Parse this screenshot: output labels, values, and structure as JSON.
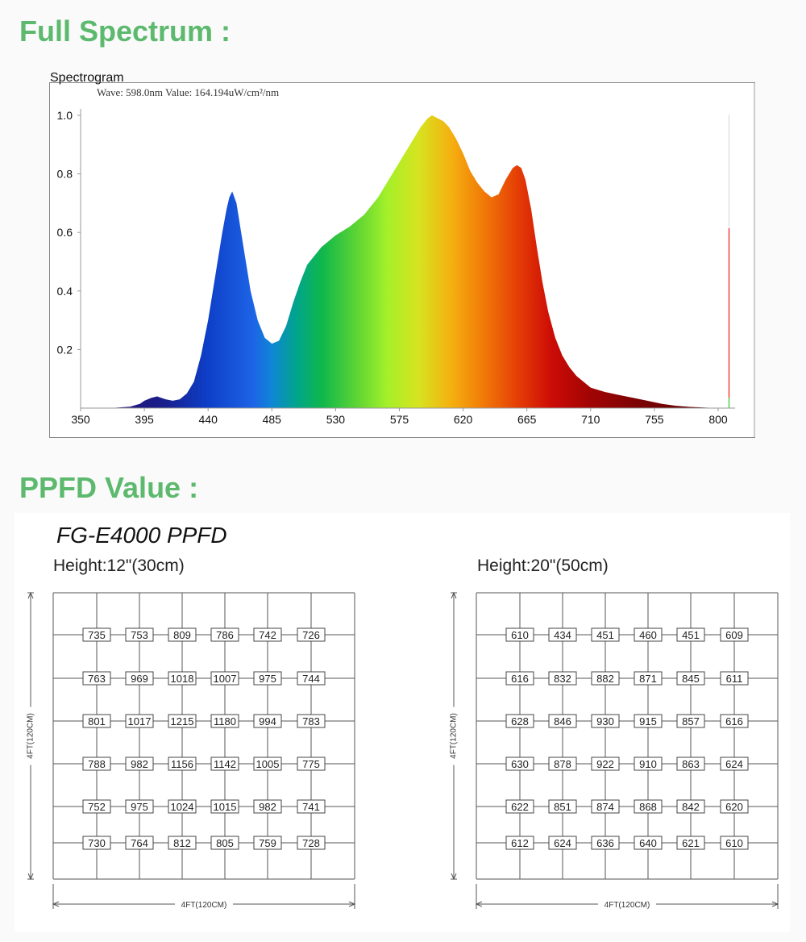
{
  "sections": {
    "spectrum_title": "Full Spectrum :",
    "ppfd_title": "PPFD Value :"
  },
  "spectrogram": {
    "title": "Spectrogram",
    "readout": "Wave: 598.0nm Value: 164.194uW/cm²/nm"
  },
  "ppfd": {
    "model_title": "FG-E4000 PPFD",
    "grids": [
      {
        "caption": "Height:12\"(30cm)",
        "side_label": "4FT(120CM)",
        "bottom_label": "4FT(120CM)",
        "values": [
          [
            735,
            753,
            809,
            786,
            742,
            726
          ],
          [
            763,
            969,
            1018,
            1007,
            975,
            744
          ],
          [
            801,
            1017,
            1215,
            1180,
            994,
            783
          ],
          [
            788,
            982,
            1156,
            1142,
            1005,
            775
          ],
          [
            752,
            975,
            1024,
            1015,
            982,
            741
          ],
          [
            730,
            764,
            812,
            805,
            759,
            728
          ]
        ]
      },
      {
        "caption": "Height:20\"(50cm)",
        "side_label": "4FT(120CM)",
        "bottom_label": "4FT(120CM)",
        "values": [
          [
            610,
            434,
            451,
            460,
            451,
            609
          ],
          [
            616,
            832,
            882,
            871,
            845,
            611
          ],
          [
            628,
            846,
            930,
            915,
            857,
            616
          ],
          [
            630,
            878,
            922,
            910,
            863,
            624
          ],
          [
            622,
            851,
            874,
            868,
            842,
            620
          ],
          [
            612,
            624,
            636,
            640,
            621,
            610
          ]
        ]
      }
    ]
  },
  "chart_data": [
    {
      "type": "area",
      "title": "Spectrogram",
      "xlabel": "",
      "ylabel": "",
      "xlim": [
        350,
        805
      ],
      "ylim": [
        0,
        1.0
      ],
      "x_ticks": [
        350,
        395,
        440,
        485,
        530,
        575,
        620,
        665,
        710,
        755,
        800
      ],
      "y_ticks": [
        0.2,
        0.4,
        0.6,
        0.8,
        1.0
      ],
      "grid": false,
      "x": [
        350,
        370,
        385,
        392,
        395,
        400,
        404,
        410,
        415,
        420,
        425,
        430,
        435,
        440,
        445,
        450,
        453,
        455,
        457,
        460,
        465,
        470,
        475,
        480,
        485,
        490,
        495,
        500,
        505,
        510,
        520,
        530,
        540,
        550,
        560,
        570,
        580,
        590,
        595,
        598,
        602,
        606,
        610,
        615,
        620,
        625,
        630,
        635,
        640,
        645,
        650,
        655,
        658,
        661,
        664,
        668,
        672,
        676,
        680,
        685,
        690,
        695,
        700,
        710,
        720,
        730,
        740,
        750,
        760,
        770,
        780,
        790,
        800
      ],
      "series": [
        {
          "values": [
            0.0,
            0.0,
            0.005,
            0.015,
            0.025,
            0.035,
            0.04,
            0.03,
            0.025,
            0.03,
            0.05,
            0.09,
            0.18,
            0.3,
            0.45,
            0.6,
            0.68,
            0.72,
            0.74,
            0.7,
            0.55,
            0.4,
            0.3,
            0.24,
            0.22,
            0.23,
            0.28,
            0.36,
            0.43,
            0.49,
            0.55,
            0.59,
            0.62,
            0.66,
            0.72,
            0.8,
            0.88,
            0.96,
            0.99,
            1.0,
            0.99,
            0.98,
            0.96,
            0.92,
            0.87,
            0.81,
            0.77,
            0.74,
            0.72,
            0.73,
            0.78,
            0.82,
            0.83,
            0.82,
            0.78,
            0.68,
            0.55,
            0.43,
            0.33,
            0.24,
            0.18,
            0.14,
            0.11,
            0.07,
            0.055,
            0.045,
            0.035,
            0.025,
            0.015,
            0.008,
            0.004,
            0.002,
            0.0
          ]
        }
      ],
      "marker": {
        "wave": 598.0
      }
    },
    {
      "type": "table",
      "title": "FG-E4000 PPFD",
      "subtitle": "Height:12\"(30cm)",
      "values": [
        [
          735,
          753,
          809,
          786,
          742,
          726
        ],
        [
          763,
          969,
          1018,
          1007,
          975,
          744
        ],
        [
          801,
          1017,
          1215,
          1180,
          994,
          783
        ],
        [
          788,
          982,
          1156,
          1142,
          1005,
          775
        ],
        [
          752,
          975,
          1024,
          1015,
          982,
          741
        ],
        [
          730,
          764,
          812,
          805,
          759,
          728
        ]
      ]
    },
    {
      "type": "table",
      "title": "FG-E4000 PPFD",
      "subtitle": "Height:20\"(50cm)",
      "values": [
        [
          610,
          434,
          451,
          460,
          451,
          609
        ],
        [
          616,
          832,
          882,
          871,
          845,
          611
        ],
        [
          628,
          846,
          930,
          915,
          857,
          616
        ],
        [
          630,
          878,
          922,
          910,
          863,
          624
        ],
        [
          622,
          851,
          874,
          868,
          842,
          620
        ],
        [
          612,
          624,
          636,
          640,
          621,
          610
        ]
      ]
    }
  ]
}
